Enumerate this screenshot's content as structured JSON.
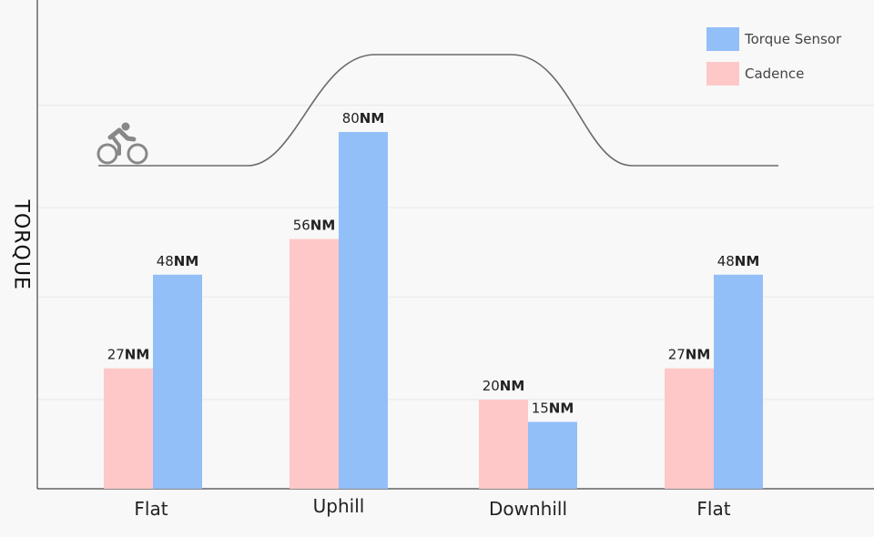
{
  "chart_data": {
    "type": "bar",
    "title": "",
    "xlabel": "",
    "ylabel": "TORQUE",
    "categories": [
      "Flat",
      "Uphill",
      "Downhill",
      "Flat"
    ],
    "unit": "NM",
    "ylim": [
      0,
      100
    ],
    "grid": true,
    "legend_position": "top-right",
    "series": [
      {
        "name": "Cadence",
        "color": "#ffc8c8",
        "values": [
          27,
          56,
          20,
          27
        ]
      },
      {
        "name": "Torque Sensor",
        "color": "#93bff9",
        "values": [
          48,
          80,
          15,
          48
        ]
      }
    ],
    "legend": [
      {
        "label": "Torque Sensor",
        "color": "#93bff9"
      },
      {
        "label": "Cadence",
        "color": "#ffc8c8"
      }
    ],
    "terrain_profile_icon": "cyclist-icon"
  }
}
